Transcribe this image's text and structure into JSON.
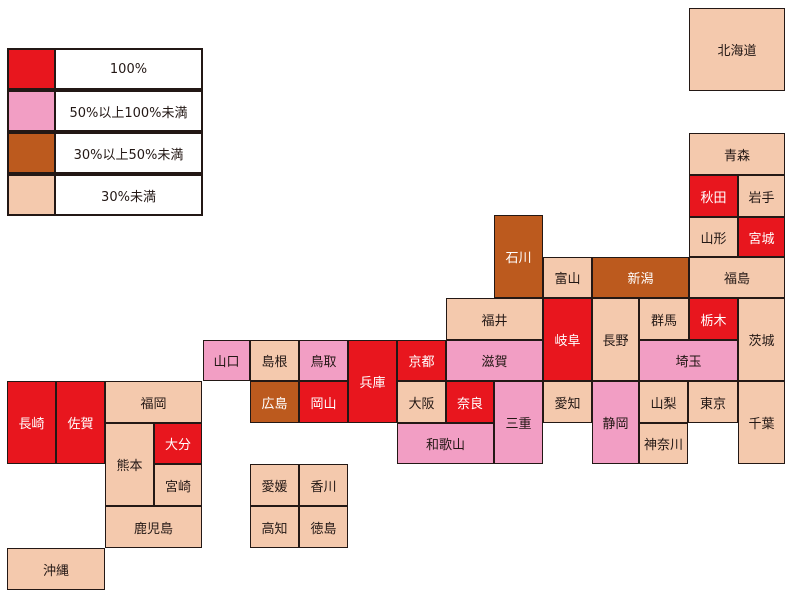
{
  "colors": {
    "full": "#e8161e",
    "high": "#f29ec4",
    "mid": "#bc5a1e",
    "low": "#f4c9ad"
  },
  "legend": [
    {
      "label": "100%",
      "category": "full"
    },
    {
      "label": "50%以上100%未満",
      "category": "high"
    },
    {
      "label": "30%以上50%未満",
      "category": "mid"
    },
    {
      "label": "30%未満",
      "category": "low"
    }
  ],
  "prefectures": [
    {
      "name": "北海道",
      "category": "low"
    },
    {
      "name": "青森",
      "category": "low"
    },
    {
      "name": "秋田",
      "category": "full"
    },
    {
      "name": "岩手",
      "category": "low"
    },
    {
      "name": "山形",
      "category": "low"
    },
    {
      "name": "宮城",
      "category": "full"
    },
    {
      "name": "石川",
      "category": "mid"
    },
    {
      "name": "富山",
      "category": "low"
    },
    {
      "name": "新潟",
      "category": "mid"
    },
    {
      "name": "福島",
      "category": "low"
    },
    {
      "name": "福井",
      "category": "low"
    },
    {
      "name": "岐阜",
      "category": "full"
    },
    {
      "name": "長野",
      "category": "low"
    },
    {
      "name": "群馬",
      "category": "low"
    },
    {
      "name": "栃木",
      "category": "full"
    },
    {
      "name": "茨城",
      "category": "low"
    },
    {
      "name": "山口",
      "category": "high"
    },
    {
      "name": "島根",
      "category": "low"
    },
    {
      "name": "鳥取",
      "category": "high"
    },
    {
      "name": "兵庫",
      "category": "full"
    },
    {
      "name": "京都",
      "category": "full"
    },
    {
      "name": "滋賀",
      "category": "high"
    },
    {
      "name": "埼玉",
      "category": "high"
    },
    {
      "name": "長崎",
      "category": "full"
    },
    {
      "name": "佐賀",
      "category": "full"
    },
    {
      "name": "福岡",
      "category": "low"
    },
    {
      "name": "広島",
      "category": "mid"
    },
    {
      "name": "岡山",
      "category": "full"
    },
    {
      "name": "大阪",
      "category": "low"
    },
    {
      "name": "奈良",
      "category": "full"
    },
    {
      "name": "三重",
      "category": "high"
    },
    {
      "name": "愛知",
      "category": "low"
    },
    {
      "name": "静岡",
      "category": "high"
    },
    {
      "name": "山梨",
      "category": "low"
    },
    {
      "name": "東京",
      "category": "low"
    },
    {
      "name": "千葉",
      "category": "low"
    },
    {
      "name": "大分",
      "category": "full"
    },
    {
      "name": "熊本",
      "category": "low"
    },
    {
      "name": "宮崎",
      "category": "low"
    },
    {
      "name": "和歌山",
      "category": "high"
    },
    {
      "name": "神奈川",
      "category": "low"
    },
    {
      "name": "愛媛",
      "category": "low"
    },
    {
      "name": "香川",
      "category": "low"
    },
    {
      "name": "鹿児島",
      "category": "low"
    },
    {
      "name": "高知",
      "category": "low"
    },
    {
      "name": "徳島",
      "category": "low"
    },
    {
      "name": "沖縄",
      "category": "low"
    }
  ]
}
